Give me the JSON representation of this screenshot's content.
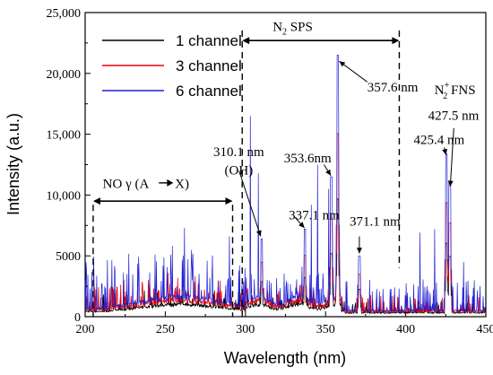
{
  "chart_data": {
    "type": "line",
    "title": "",
    "xlabel": "Wavelength (nm)",
    "ylabel": "Intensity (a.u.)",
    "xlim": [
      200,
      450
    ],
    "ylim": [
      0,
      25000
    ],
    "x_ticks": [
      200,
      250,
      300,
      350,
      400,
      450
    ],
    "y_ticks": [
      0,
      5000,
      10000,
      15000,
      20000,
      25000
    ],
    "x_tick_labels": [
      "200",
      "250",
      "300",
      "350",
      "400",
      "450"
    ],
    "y_tick_labels": [
      "0",
      "5000",
      "10,000",
      "15,000",
      "20,000",
      "25,000"
    ],
    "grid": false,
    "legend_position": "top-left",
    "series": [
      {
        "name": "1 channel",
        "color": "#000000"
      },
      {
        "name": "3 channel",
        "color": "#e8000b"
      },
      {
        "name": "6 channel",
        "color": "#1f1fd6"
      }
    ],
    "peaks_6_channel": [
      {
        "x": 310.1,
        "y": 6400
      },
      {
        "x": 337.1,
        "y": 7200
      },
      {
        "x": 353.6,
        "y": 11500
      },
      {
        "x": 357.6,
        "y": 21500
      },
      {
        "x": 371.1,
        "y": 5000
      },
      {
        "x": 425.4,
        "y": 13400
      },
      {
        "x": 427.5,
        "y": 11000
      }
    ],
    "annotations": {
      "no_gamma": {
        "label": "NO γ  (A",
        "label_end": "X)",
        "x_range": [
          205,
          292
        ]
      },
      "n2_sps": {
        "label_main": "N",
        "label_sub": "2",
        "label_rest": " SPS",
        "x_range": [
          298,
          396
        ]
      },
      "n2_fns": {
        "label_main": "N",
        "label_sup": "+",
        "label_sub": "2",
        "label_rest": " FNS"
      },
      "peak_labels": [
        {
          "text": "310.1 nm",
          "x": 310.1
        },
        {
          "text": "(OH)",
          "x": 310.1
        },
        {
          "text": "337.1 nm",
          "x": 337.1
        },
        {
          "text": "353.6nm",
          "x": 353.6
        },
        {
          "text": "357.6 nm",
          "x": 357.6
        },
        {
          "text": "371.1 nm",
          "x": 371.1
        },
        {
          "text": "425.4 nm",
          "x": 425.4
        },
        {
          "text": "427.5 nm",
          "x": 427.5
        }
      ]
    }
  }
}
